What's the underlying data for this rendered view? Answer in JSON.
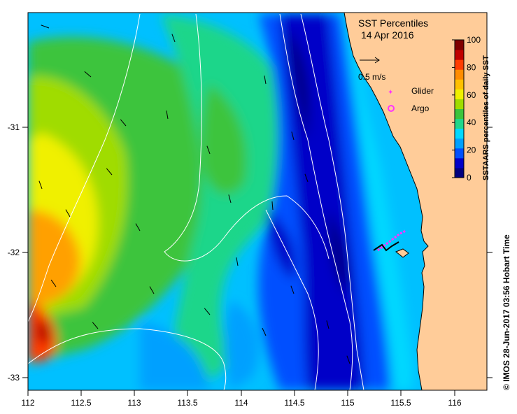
{
  "map": {
    "title": "SST Percentiles",
    "date": "14 Apr 2016",
    "credit": "© IMOS 28-Jun-2017 03:56 Hobart Time",
    "lon_ticks": [
      "112",
      "112.5",
      "113",
      "113.5",
      "114",
      "114.5",
      "115",
      "115.5",
      "116"
    ],
    "lat_ticks": [
      "-31",
      "-32",
      "-33"
    ],
    "lon_range": [
      112,
      116.3
    ],
    "lat_range": [
      -30.1,
      -33.1
    ]
  },
  "legend": {
    "current_scale": "0.5 m/s",
    "glider_label": "Glider",
    "argo_label": "Argo",
    "glider_color": "#ff33ff",
    "argo_color": "#ff33ff"
  },
  "colorbar": {
    "label": "SSTAARS percentiles of daily SST",
    "ticks": [
      "0",
      "20",
      "40",
      "60",
      "80",
      "100"
    ],
    "colors": [
      "#00007f",
      "#0000c8",
      "#0050ff",
      "#00a0ff",
      "#00d8ff",
      "#1fd68a",
      "#3cc43c",
      "#a0dc00",
      "#f0f000",
      "#ffc000",
      "#ff8c00",
      "#ff3c00",
      "#c00000",
      "#800000"
    ]
  },
  "land_color": "#ffcc99"
}
